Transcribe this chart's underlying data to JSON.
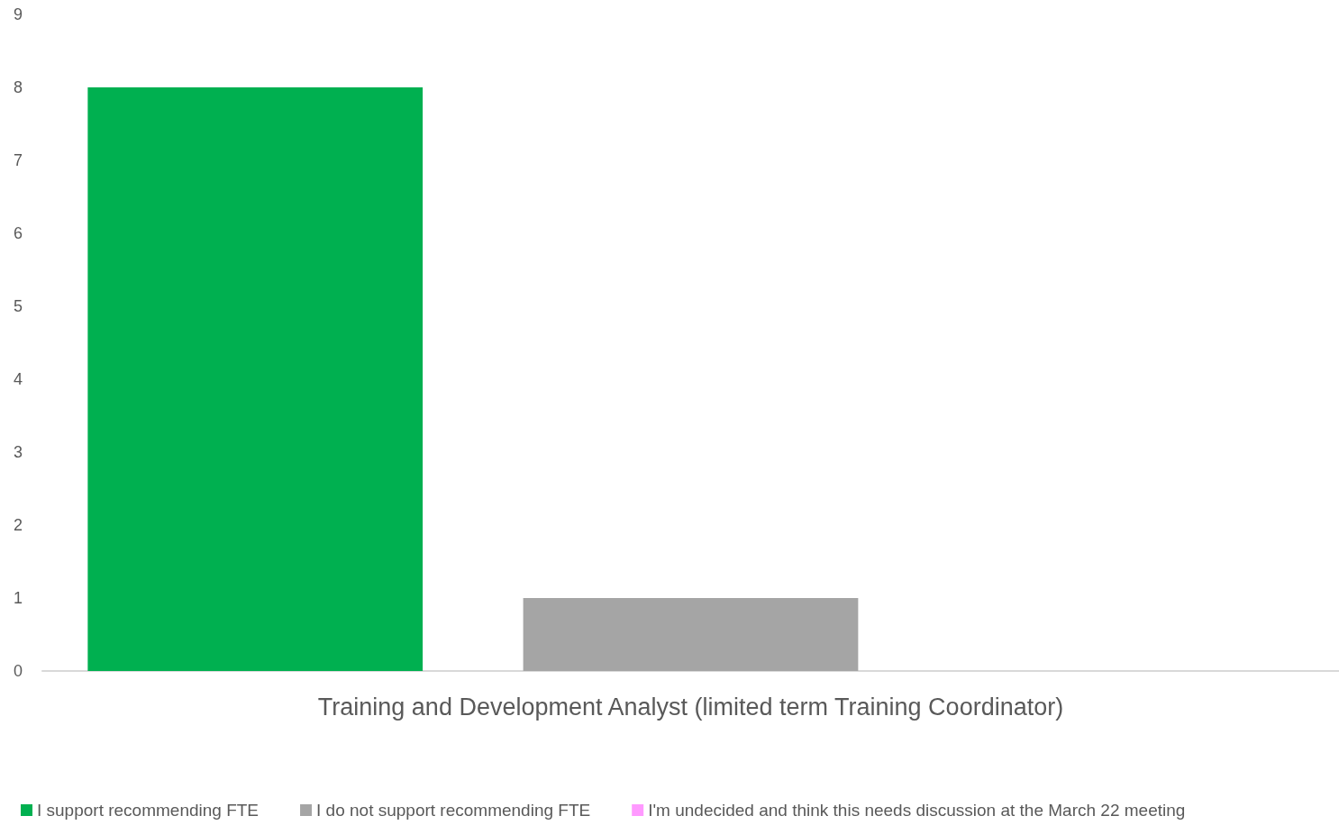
{
  "chart_data": {
    "type": "bar",
    "categories": [
      "Training and Development Analyst (limited term Training Coordinator)"
    ],
    "series": [
      {
        "name": "I support recommending FTE",
        "color": "#00b050",
        "values": [
          8
        ]
      },
      {
        "name": "I do not support recommending FTE",
        "color": "#a5a5a5",
        "values": [
          1
        ]
      },
      {
        "name": "I'm undecided and think this needs discussion at the March 22 meeting",
        "color": "#ff99ff",
        "values": [
          0
        ]
      }
    ],
    "ylim": [
      0,
      9
    ],
    "yticks": [
      0,
      1,
      2,
      3,
      4,
      5,
      6,
      7,
      8,
      9
    ],
    "grid": false,
    "legend": "bottom"
  }
}
